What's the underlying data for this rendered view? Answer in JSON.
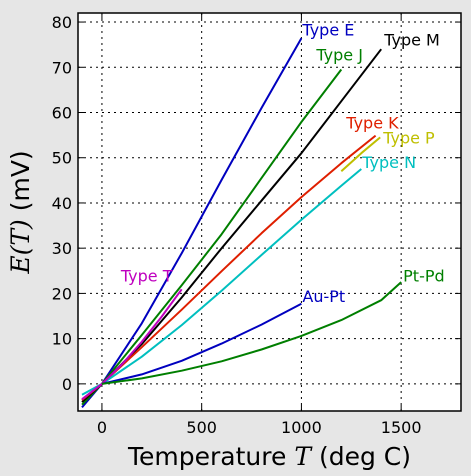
{
  "chart_data": {
    "type": "line",
    "xlabel": "Temperature T (deg C)",
    "xlabel_parts": {
      "prefix": "Temperature ",
      "var": "T",
      "suffix": " (deg C)"
    },
    "ylabel": "E(T) (mV)",
    "ylabel_parts": {
      "var": "E(T)",
      "suffix": " (mV)"
    },
    "xlim": [
      -120,
      1800
    ],
    "ylim": [
      -6,
      82
    ],
    "xticks": [
      0,
      500,
      1000,
      1500
    ],
    "yticks": [
      0,
      10,
      20,
      30,
      40,
      50,
      60,
      70,
      80
    ],
    "grid": true,
    "series": [
      {
        "name": "Type E",
        "color": "#0000bf",
        "x": [
          -100,
          0,
          200,
          400,
          600,
          800,
          1000
        ],
        "y": [
          -5.2,
          0,
          13.4,
          28.9,
          45.1,
          61.0,
          76.4
        ]
      },
      {
        "name": "Type J",
        "color": "#007f00",
        "x": [
          -100,
          0,
          200,
          400,
          600,
          800,
          1000,
          1200
        ],
        "y": [
          -4.6,
          0,
          10.8,
          21.8,
          33.1,
          45.5,
          57.9,
          69.5
        ]
      },
      {
        "name": "Type M",
        "color": "#000000",
        "x": [
          -100,
          0,
          200,
          400,
          600,
          800,
          1000,
          1200,
          1400
        ],
        "y": [
          -4.0,
          0,
          8.8,
          19.1,
          30.0,
          40.5,
          51.0,
          62.5,
          74.0
        ]
      },
      {
        "name": "Type K",
        "color": "#df1f00",
        "x": [
          -100,
          0,
          200,
          400,
          600,
          800,
          1000,
          1200,
          1372
        ],
        "y": [
          -3.6,
          0,
          8.1,
          16.4,
          24.9,
          33.3,
          41.3,
          48.8,
          54.9
        ]
      },
      {
        "name": "Type P",
        "color": "#bfbf00",
        "x": [
          1200,
          1300,
          1395
        ],
        "y": [
          47.0,
          51.0,
          54.5
        ]
      },
      {
        "name": "Type N",
        "color": "#00bfbf",
        "x": [
          -100,
          0,
          200,
          400,
          600,
          800,
          1000,
          1200,
          1300
        ],
        "y": [
          -2.4,
          0,
          6.0,
          13.0,
          20.6,
          28.5,
          36.3,
          43.8,
          47.5
        ]
      },
      {
        "name": "Type T",
        "color": "#bf00bf",
        "x": [
          -100,
          0,
          100,
          200,
          300,
          400
        ],
        "y": [
          -3.4,
          0,
          4.3,
          9.3,
          14.9,
          20.9
        ]
      },
      {
        "name": "Au-Pt",
        "color": "#0000bf",
        "x": [
          0,
          200,
          400,
          600,
          800,
          1000
        ],
        "y": [
          0,
          2.1,
          5.1,
          8.9,
          13.1,
          17.7
        ]
      },
      {
        "name": "Pt-Pd",
        "color": "#007f00",
        "x": [
          0,
          200,
          400,
          600,
          800,
          1000,
          1200,
          1400,
          1500
        ],
        "y": [
          0,
          1.2,
          2.9,
          5.0,
          7.6,
          10.6,
          14.1,
          18.5,
          22.5
        ]
      }
    ],
    "labels": [
      {
        "text": "Type E",
        "x": 1005,
        "y": 77,
        "color": "#0000bf"
      },
      {
        "text": "Type J",
        "x": 1075,
        "y": 71.5,
        "color": "#007f00"
      },
      {
        "text": "Type M",
        "x": 1415,
        "y": 74.8,
        "color": "#000000"
      },
      {
        "text": "Type K",
        "x": 1225,
        "y": 56.5,
        "color": "#df1f00"
      },
      {
        "text": "Type P",
        "x": 1410,
        "y": 53.1,
        "color": "#bfbf00"
      },
      {
        "text": "Type N",
        "x": 1305,
        "y": 47.7,
        "color": "#00bfbf"
      },
      {
        "text": "Type T",
        "x": 95,
        "y": 22.6,
        "color": "#bf00bf"
      },
      {
        "text": "Au-Pt",
        "x": 1005,
        "y": 18.1,
        "color": "#0000bf"
      },
      {
        "text": "Pt-Pd",
        "x": 1510,
        "y": 22.6,
        "color": "#007f00"
      }
    ]
  }
}
